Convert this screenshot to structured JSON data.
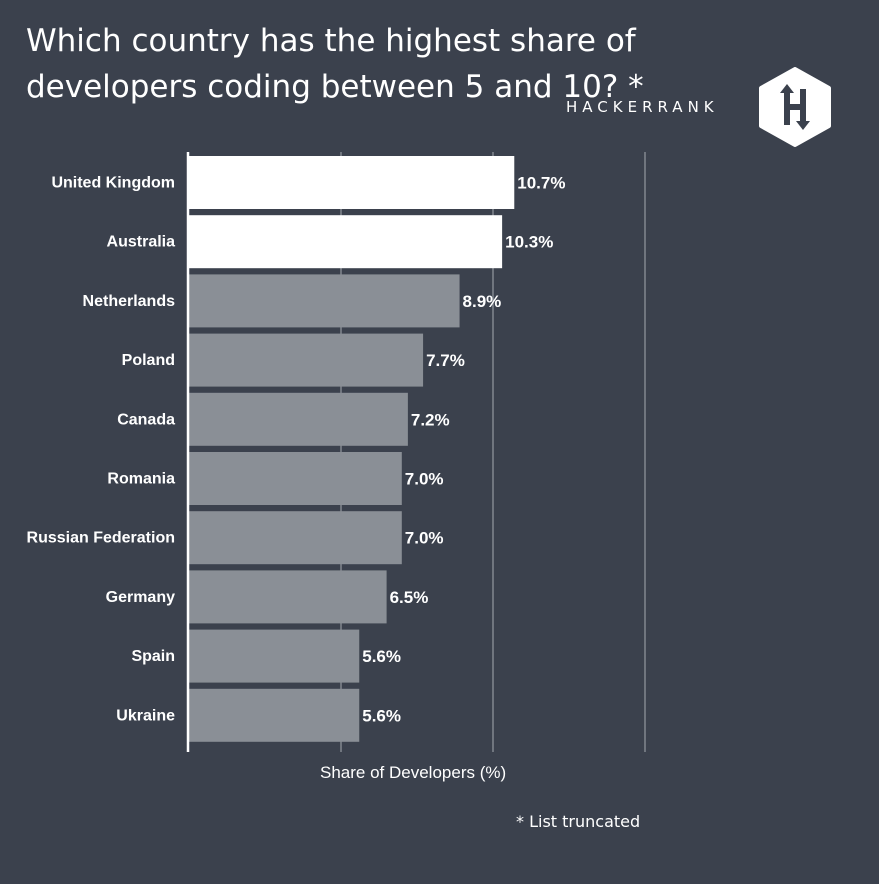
{
  "header": {
    "title": "Which country has the highest share of developers coding between 5 and 10? *",
    "brand": "HACKERRANK",
    "logo_letter": "H"
  },
  "footnote": "* List truncated",
  "colors": {
    "background": "#3b414d",
    "highlight_bar": "#ffffff",
    "default_bar": "#8a8f96",
    "text": "#ffffff",
    "gridline": "#8d929a"
  },
  "chart_data": {
    "type": "bar",
    "orientation": "horizontal",
    "categories": [
      "United Kingdom",
      "Australia",
      "Netherlands",
      "Poland",
      "Canada",
      "Romania",
      "Russian Federation",
      "Germany",
      "Spain",
      "Ukraine"
    ],
    "values": [
      10.7,
      10.3,
      8.9,
      7.7,
      7.2,
      7.0,
      7.0,
      6.5,
      5.6,
      5.6
    ],
    "value_labels": [
      "10.7%",
      "10.3%",
      "8.9%",
      "7.7%",
      "7.2%",
      "7.0%",
      "7.0%",
      "6.5%",
      "5.6%",
      "5.6%"
    ],
    "highlighted": [
      true,
      true,
      false,
      false,
      false,
      false,
      false,
      false,
      false,
      false
    ],
    "xlabel": "Share of Developers (%)",
    "xlim": [
      0,
      15
    ],
    "grid": true
  }
}
